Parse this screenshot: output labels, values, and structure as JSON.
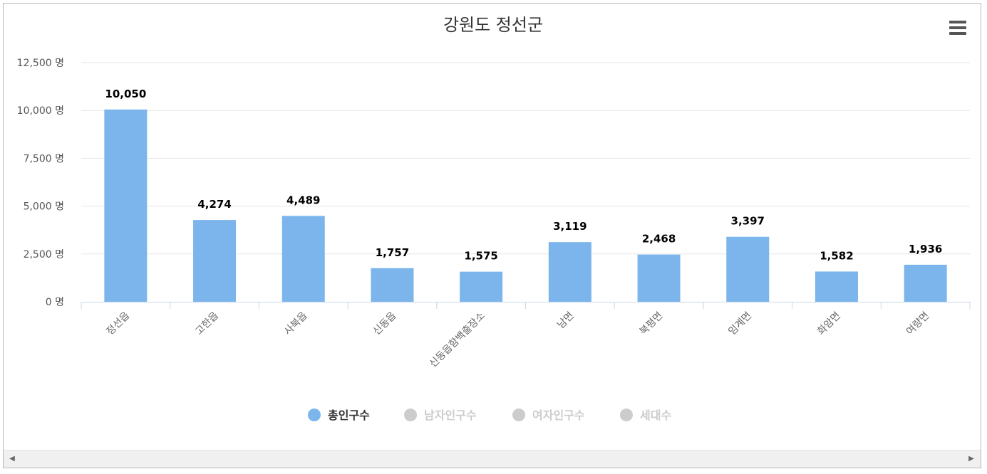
{
  "chart_data": {
    "type": "bar",
    "title": "강원도 정선군",
    "categories": [
      "정선읍",
      "고한읍",
      "사북읍",
      "신동읍",
      "신동읍함백출장소",
      "남면",
      "북평면",
      "임계면",
      "화암면",
      "여량면"
    ],
    "series": [
      {
        "name": "총인구수",
        "values": [
          10050,
          4274,
          4489,
          1757,
          1575,
          3119,
          2468,
          3397,
          1582,
          1936
        ],
        "data_labels": [
          "10,050",
          "4,274",
          "4,489",
          "1,757",
          "1,575",
          "3,119",
          "2,468",
          "3,397",
          "1,582",
          "1,936"
        ],
        "color": "#7cb5ec",
        "visible": true
      }
    ],
    "legend": [
      {
        "name": "총인구수",
        "active": true,
        "color": "#7cb5ec"
      },
      {
        "name": "남자인구수",
        "active": false,
        "color": "#cccccc"
      },
      {
        "name": "여자인구수",
        "active": false,
        "color": "#cccccc"
      },
      {
        "name": "세대수",
        "active": false,
        "color": "#cccccc"
      }
    ],
    "ylim": [
      0,
      12500
    ],
    "yticks": [
      0,
      2500,
      5000,
      7500,
      10000,
      12500
    ],
    "ytick_labels": [
      "0 명",
      "2,500 명",
      "5,000 명",
      "7,500 명",
      "10,000 명",
      "12,500 명"
    ],
    "grid": true,
    "legend_position": "bottom-center"
  },
  "menu": {
    "icon": "hamburger-menu-icon"
  },
  "scrollbar": {
    "left_icon": "arrow-left-icon",
    "right_icon": "arrow-right-icon",
    "left_glyph": "◀",
    "right_glyph": "▶"
  }
}
